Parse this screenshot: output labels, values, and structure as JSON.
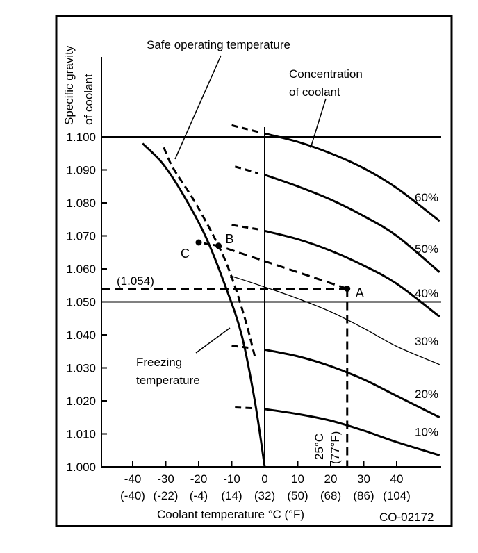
{
  "figure_id": "CO-02172",
  "colors": {
    "ink": "#000000",
    "background": "#ffffff"
  },
  "chart_data": {
    "type": "line",
    "title": "",
    "ylabel": [
      "Specific gravity",
      "of coolant"
    ],
    "xlabel": "Coolant temperature °C (°F)",
    "xlim": [
      -49.5,
      53.5
    ],
    "ylim": [
      1.0,
      1.1
    ],
    "grid": false,
    "reference_lines": {
      "horizontal": [
        1.1,
        1.05
      ],
      "vertical": [
        0
      ]
    },
    "y_ticks": [
      {
        "value": 1.1,
        "label": "1.100"
      },
      {
        "value": 1.09,
        "label": "1.090"
      },
      {
        "value": 1.08,
        "label": "1.080"
      },
      {
        "value": 1.07,
        "label": "1.070"
      },
      {
        "value": 1.06,
        "label": "1.060"
      },
      {
        "value": 1.05,
        "label": "1.050"
      },
      {
        "value": 1.04,
        "label": "1.040"
      },
      {
        "value": 1.03,
        "label": "1.030"
      },
      {
        "value": 1.02,
        "label": "1.020"
      },
      {
        "value": 1.01,
        "label": "1.010"
      },
      {
        "value": 1.0,
        "label": "1.000"
      }
    ],
    "x_ticks": [
      {
        "value": -40,
        "label": "-40",
        "label_f": "(-40)"
      },
      {
        "value": -30,
        "label": "-30",
        "label_f": "(-22)"
      },
      {
        "value": -20,
        "label": "-20",
        "label_f": "(-4)"
      },
      {
        "value": -10,
        "label": "-10",
        "label_f": "(14)"
      },
      {
        "value": 0,
        "label": "0",
        "label_f": "(32)"
      },
      {
        "value": 10,
        "label": "10",
        "label_f": "(50)"
      },
      {
        "value": 20,
        "label": "20",
        "label_f": "(68)"
      },
      {
        "value": 30,
        "label": "30",
        "label_f": "(86)"
      },
      {
        "value": 40,
        "label": "40",
        "label_f": "(104)"
      }
    ],
    "concentration_curves": [
      {
        "name": "60%",
        "label": "60%",
        "weight": "bold",
        "dashed": [
          [
            -10,
            1.1035
          ],
          [
            -2,
            1.1015
          ]
        ],
        "solid": [
          [
            0,
            1.101
          ],
          [
            10,
            1.0985
          ],
          [
            20,
            1.095
          ],
          [
            30,
            1.0905
          ],
          [
            40,
            1.0845
          ],
          [
            53,
            1.0745
          ]
        ]
      },
      {
        "name": "50%",
        "label": "50%",
        "weight": "bold",
        "dashed": [
          [
            -9,
            1.091
          ],
          [
            -2,
            1.089
          ]
        ],
        "solid": [
          [
            0,
            1.0885
          ],
          [
            10,
            1.085
          ],
          [
            20,
            1.081
          ],
          [
            30,
            1.076
          ],
          [
            40,
            1.07
          ],
          [
            53,
            1.059
          ]
        ]
      },
      {
        "name": "40%",
        "label": "40%",
        "weight": "bold",
        "dashed": [
          [
            -10,
            1.0733
          ],
          [
            -2,
            1.072
          ]
        ],
        "solid": [
          [
            0,
            1.0715
          ],
          [
            10,
            1.069
          ],
          [
            20,
            1.0655
          ],
          [
            30,
            1.061
          ],
          [
            40,
            1.0555
          ],
          [
            53,
            1.0455
          ]
        ]
      },
      {
        "name": "30%",
        "label": "30%",
        "weight": "thin",
        "dashed": [],
        "solid": [
          [
            -10,
            1.0578
          ],
          [
            0,
            1.0545
          ],
          [
            10,
            1.051
          ],
          [
            20,
            1.047
          ],
          [
            30,
            1.042
          ],
          [
            40,
            1.0365
          ],
          [
            53,
            1.031
          ]
        ]
      },
      {
        "name": "20%",
        "label": "20%",
        "weight": "bold",
        "dashed": [
          [
            -10,
            1.0367
          ],
          [
            -4,
            1.036
          ]
        ],
        "solid": [
          [
            0,
            1.0355
          ],
          [
            10,
            1.0335
          ],
          [
            20,
            1.0305
          ],
          [
            30,
            1.0265
          ],
          [
            40,
            1.0215
          ],
          [
            53,
            1.015
          ]
        ]
      },
      {
        "name": "10%",
        "label": "10%",
        "weight": "bold",
        "dashed": [
          [
            -9,
            1.018
          ],
          [
            -4,
            1.0178
          ]
        ],
        "solid": [
          [
            0,
            1.0175
          ],
          [
            10,
            1.016
          ],
          [
            20,
            1.014
          ],
          [
            30,
            1.011
          ],
          [
            40,
            1.0075
          ],
          [
            53,
            1.0035
          ]
        ]
      }
    ],
    "freezing_curve": {
      "name": "Freezing temperature",
      "points": [
        [
          0,
          1.0
        ],
        [
          -3,
          1.02
        ],
        [
          -7,
          1.04
        ],
        [
          -12,
          1.055
        ],
        [
          -18,
          1.07
        ],
        [
          -25,
          1.083
        ],
        [
          -31,
          1.092
        ],
        [
          -37,
          1.098
        ]
      ]
    },
    "safe_operating_curve": {
      "name": "Safe operating temperature",
      "points": [
        [
          -3,
          1.0335
        ],
        [
          -6,
          1.045
        ],
        [
          -10,
          1.0575
        ],
        [
          -14,
          1.067
        ],
        [
          -21,
          1.08
        ],
        [
          -28,
          1.091
        ],
        [
          -31,
          1.098
        ]
      ]
    },
    "points": [
      {
        "name": "A",
        "label": "A",
        "x": 25,
        "y": 1.054
      },
      {
        "name": "B",
        "label": "B",
        "x": -14,
        "y": 1.067
      },
      {
        "name": "C",
        "label": "C",
        "x": -20,
        "y": 1.068
      }
    ],
    "guide_lines": {
      "sg_reading": {
        "value": 1.054,
        "label": "(1.054)"
      },
      "temp_reading": {
        "value": 25,
        "label_c": "25°C",
        "label_f": "(77°F)"
      },
      "a_to_b": [
        [
          25,
          1.054
        ],
        [
          -14,
          1.067
        ]
      ],
      "b_to_c": [
        [
          -14,
          1.067
        ],
        [
          -20,
          1.068
        ]
      ]
    },
    "annotations": [
      {
        "name": "safe-operating-label",
        "text": "Safe operating temperature"
      },
      {
        "name": "concentration-label",
        "lines": [
          "Concentration",
          "of coolant"
        ]
      },
      {
        "name": "freezing-label",
        "lines": [
          "Freezing",
          "temperature"
        ]
      }
    ],
    "series": [
      {
        "name": "60%"
      },
      {
        "name": "50%"
      },
      {
        "name": "40%"
      },
      {
        "name": "30%"
      },
      {
        "name": "20%"
      },
      {
        "name": "10%"
      }
    ]
  }
}
